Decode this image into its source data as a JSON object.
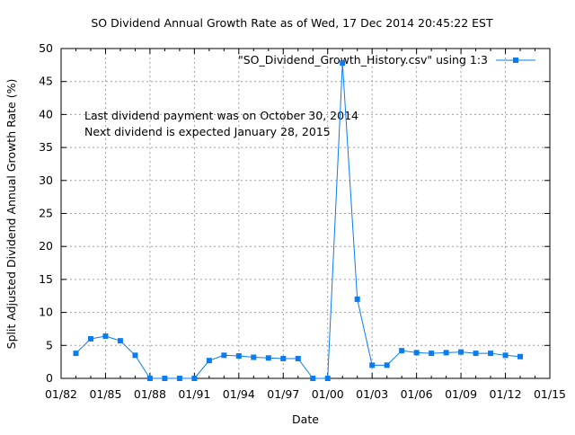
{
  "chart_data": {
    "type": "line",
    "title": "SO Dividend Annual Growth Rate as of Wed, 17 Dec 2014 20:45:22 EST",
    "xlabel": "Date",
    "ylabel": "Split Adjusted Dividend Annual Growth Rate (%)",
    "xlim": [
      1982,
      2015
    ],
    "ylim": [
      0,
      50
    ],
    "grid": true,
    "legend_position": "top-right",
    "x_ticks": [
      {
        "value": 1982,
        "label": "01/82"
      },
      {
        "value": 1985,
        "label": "01/85"
      },
      {
        "value": 1988,
        "label": "01/88"
      },
      {
        "value": 1991,
        "label": "01/91"
      },
      {
        "value": 1994,
        "label": "01/94"
      },
      {
        "value": 1997,
        "label": "01/97"
      },
      {
        "value": 2000,
        "label": "01/00"
      },
      {
        "value": 2003,
        "label": "01/03"
      },
      {
        "value": 2006,
        "label": "01/06"
      },
      {
        "value": 2009,
        "label": "01/09"
      },
      {
        "value": 2012,
        "label": "01/12"
      },
      {
        "value": 2015,
        "label": "01/15"
      }
    ],
    "y_ticks": [
      0,
      5,
      10,
      15,
      20,
      25,
      30,
      35,
      40,
      45,
      50
    ],
    "annotations": [
      "Last dividend payment was on October 30, 2014",
      "Next dividend is expected January 28, 2015"
    ],
    "series": [
      {
        "name": "\"SO_Dividend_Growth_History.csv\" using 1:3",
        "color": "#0a7cf0",
        "x": [
          1983,
          1984,
          1985,
          1986,
          1987,
          1988,
          1989,
          1990,
          1991,
          1992,
          1993,
          1994,
          1995,
          1996,
          1997,
          1998,
          1999,
          2000,
          2001,
          2002,
          2003,
          2004,
          2005,
          2006,
          2007,
          2008,
          2009,
          2010,
          2011,
          2012,
          2013
        ],
        "y": [
          3.8,
          6.0,
          6.4,
          5.7,
          3.5,
          0,
          0,
          0,
          0,
          2.7,
          3.5,
          3.4,
          3.2,
          3.1,
          3.0,
          3.0,
          0,
          0,
          47.8,
          12.0,
          2.0,
          2.0,
          4.2,
          3.9,
          3.8,
          3.9,
          4.0,
          3.8,
          3.8,
          3.5,
          3.3
        ]
      }
    ]
  }
}
